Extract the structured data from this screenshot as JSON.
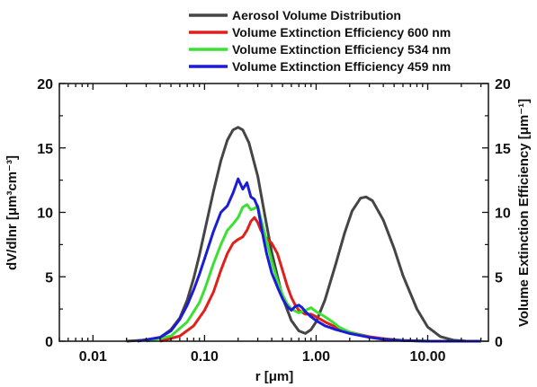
{
  "chart_data": {
    "type": "line",
    "x_scale": "log",
    "xlabel": "r [μm]",
    "ylabel_left": "dV/dlnr [μm³cm⁻³]",
    "ylabel_right": "Volume Extinction Efficiency [μm⁻¹]",
    "xlim": [
      0.005,
      35
    ],
    "ylim": [
      0,
      20
    ],
    "y2lim": [
      0,
      20
    ],
    "x_ticks": [
      0.01,
      0.1,
      1,
      10
    ],
    "x_tick_labels": [
      "0.01",
      "0.10",
      "1.00",
      "10.00"
    ],
    "y_ticks": [
      0,
      5,
      10,
      15,
      20
    ],
    "y_tick_labels": [
      "0",
      "5",
      "10",
      "15",
      "20"
    ],
    "y2_tick_labels": [
      "0",
      "5",
      "10",
      "15",
      "20"
    ],
    "legend_position": "top",
    "series": [
      {
        "name": "Aerosol Volume Distribution",
        "color": "#454545",
        "axis": "left",
        "points": [
          [
            0.02,
            0.0
          ],
          [
            0.03,
            0.1
          ],
          [
            0.04,
            0.3
          ],
          [
            0.05,
            0.9
          ],
          [
            0.06,
            1.8
          ],
          [
            0.07,
            3.2
          ],
          [
            0.08,
            4.9
          ],
          [
            0.09,
            6.7
          ],
          [
            0.1,
            8.5
          ],
          [
            0.12,
            11.6
          ],
          [
            0.14,
            14.0
          ],
          [
            0.16,
            15.6
          ],
          [
            0.18,
            16.4
          ],
          [
            0.2,
            16.6
          ],
          [
            0.22,
            16.4
          ],
          [
            0.25,
            15.4
          ],
          [
            0.3,
            12.8
          ],
          [
            0.35,
            9.6
          ],
          [
            0.4,
            6.9
          ],
          [
            0.5,
            3.4
          ],
          [
            0.6,
            1.6
          ],
          [
            0.7,
            0.8
          ],
          [
            0.8,
            0.6
          ],
          [
            0.9,
            0.9
          ],
          [
            1.0,
            1.5
          ],
          [
            1.2,
            3.2
          ],
          [
            1.5,
            6.0
          ],
          [
            1.8,
            8.4
          ],
          [
            2.1,
            10.1
          ],
          [
            2.5,
            11.1
          ],
          [
            2.8,
            11.2
          ],
          [
            3.2,
            10.9
          ],
          [
            4.0,
            9.4
          ],
          [
            5.0,
            7.2
          ],
          [
            6.0,
            5.1
          ],
          [
            8.0,
            2.5
          ],
          [
            10.0,
            1.1
          ],
          [
            13.0,
            0.35
          ],
          [
            17.0,
            0.08
          ],
          [
            22.0,
            0.01
          ],
          [
            30.0,
            0.0
          ]
        ]
      },
      {
        "name": "Volume Extinction Efficiency 600 nm",
        "color": "#e0201b",
        "axis": "right",
        "points": [
          [
            0.04,
            0.0
          ],
          [
            0.06,
            0.4
          ],
          [
            0.08,
            1.2
          ],
          [
            0.1,
            2.4
          ],
          [
            0.12,
            3.8
          ],
          [
            0.14,
            5.5
          ],
          [
            0.16,
            6.8
          ],
          [
            0.18,
            7.6
          ],
          [
            0.2,
            7.9
          ],
          [
            0.22,
            8.1
          ],
          [
            0.24,
            8.6
          ],
          [
            0.26,
            9.3
          ],
          [
            0.28,
            9.6
          ],
          [
            0.3,
            9.2
          ],
          [
            0.32,
            8.6
          ],
          [
            0.35,
            8.1
          ],
          [
            0.4,
            7.6
          ],
          [
            0.45,
            6.8
          ],
          [
            0.5,
            5.5
          ],
          [
            0.55,
            4.3
          ],
          [
            0.6,
            3.4
          ],
          [
            0.65,
            2.8
          ],
          [
            0.7,
            2.4
          ],
          [
            0.8,
            2.1
          ],
          [
            0.9,
            2.1
          ],
          [
            1.0,
            1.9
          ],
          [
            1.2,
            1.5
          ],
          [
            1.5,
            1.1
          ],
          [
            2.0,
            0.7
          ],
          [
            3.0,
            0.35
          ],
          [
            4.0,
            0.2
          ],
          [
            6.0,
            0.05
          ],
          [
            10.0,
            0.0
          ],
          [
            30.0,
            0.0
          ]
        ]
      },
      {
        "name": "Volume Extinction Efficiency 534 nm",
        "color": "#3be033",
        "axis": "right",
        "points": [
          [
            0.03,
            0.0
          ],
          [
            0.05,
            0.4
          ],
          [
            0.07,
            1.5
          ],
          [
            0.09,
            3.0
          ],
          [
            0.1,
            4.0
          ],
          [
            0.12,
            6.0
          ],
          [
            0.14,
            7.5
          ],
          [
            0.16,
            8.6
          ],
          [
            0.18,
            9.1
          ],
          [
            0.2,
            9.6
          ],
          [
            0.22,
            10.4
          ],
          [
            0.24,
            10.6
          ],
          [
            0.26,
            10.2
          ],
          [
            0.28,
            10.3
          ],
          [
            0.3,
            10.5
          ],
          [
            0.32,
            9.5
          ],
          [
            0.35,
            8.2
          ],
          [
            0.4,
            6.2
          ],
          [
            0.45,
            4.7
          ],
          [
            0.5,
            3.6
          ],
          [
            0.55,
            2.9
          ],
          [
            0.6,
            2.5
          ],
          [
            0.7,
            2.2
          ],
          [
            0.8,
            2.4
          ],
          [
            0.9,
            2.6
          ],
          [
            1.0,
            2.3
          ],
          [
            1.2,
            1.9
          ],
          [
            1.4,
            1.5
          ],
          [
            1.5,
            1.3
          ],
          [
            1.6,
            1.1
          ],
          [
            2.0,
            0.7
          ],
          [
            3.0,
            0.3
          ],
          [
            4.0,
            0.15
          ],
          [
            6.0,
            0.05
          ],
          [
            10.0,
            0.0
          ],
          [
            30.0,
            0.0
          ]
        ]
      },
      {
        "name": "Volume Extinction Efficiency 459 nm",
        "color": "#1c1cd6",
        "axis": "right",
        "points": [
          [
            0.025,
            0.0
          ],
          [
            0.04,
            0.3
          ],
          [
            0.05,
            0.8
          ],
          [
            0.06,
            1.7
          ],
          [
            0.07,
            2.8
          ],
          [
            0.08,
            4.0
          ],
          [
            0.09,
            5.2
          ],
          [
            0.1,
            6.4
          ],
          [
            0.12,
            8.5
          ],
          [
            0.14,
            10.0
          ],
          [
            0.16,
            10.5
          ],
          [
            0.18,
            11.5
          ],
          [
            0.2,
            12.6
          ],
          [
            0.22,
            11.8
          ],
          [
            0.24,
            12.3
          ],
          [
            0.26,
            11.2
          ],
          [
            0.28,
            11.0
          ],
          [
            0.3,
            10.4
          ],
          [
            0.33,
            8.4
          ],
          [
            0.36,
            6.8
          ],
          [
            0.4,
            5.3
          ],
          [
            0.45,
            4.2
          ],
          [
            0.5,
            3.3
          ],
          [
            0.55,
            2.7
          ],
          [
            0.6,
            2.4
          ],
          [
            0.65,
            2.7
          ],
          [
            0.7,
            2.8
          ],
          [
            0.75,
            2.6
          ],
          [
            0.8,
            2.3
          ],
          [
            0.9,
            1.9
          ],
          [
            1.0,
            1.6
          ],
          [
            1.2,
            1.2
          ],
          [
            1.5,
            0.9
          ],
          [
            2.0,
            0.6
          ],
          [
            3.0,
            0.3
          ],
          [
            4.0,
            0.15
          ],
          [
            6.0,
            0.05
          ],
          [
            10.0,
            0.0
          ],
          [
            30.0,
            0.0
          ]
        ]
      }
    ]
  }
}
